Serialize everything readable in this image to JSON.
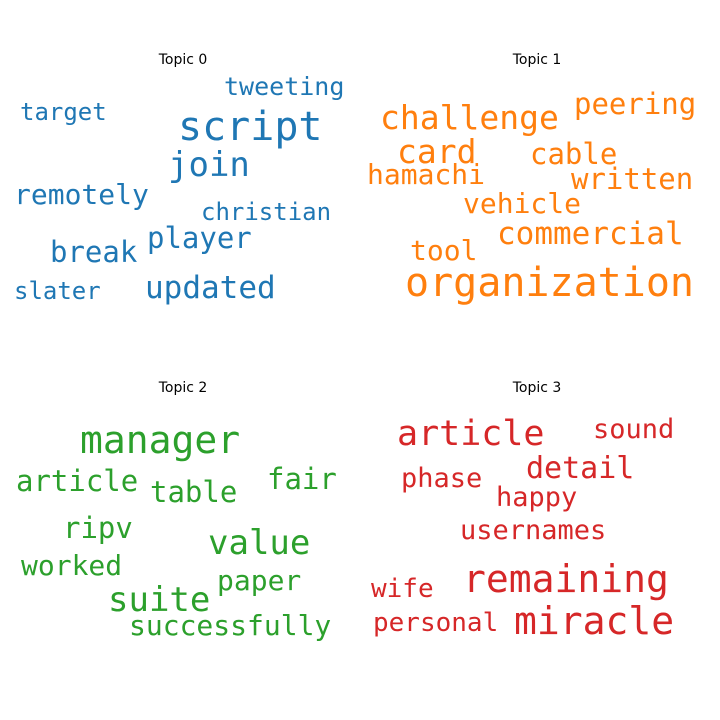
{
  "chart_data": {
    "type": "wordcloud",
    "panels": [
      {
        "title": "Topic 0",
        "color": "#1f77b4",
        "words": [
          "script",
          "join",
          "remotely",
          "break",
          "player",
          "updated",
          "tweeting",
          "target",
          "christian",
          "slater"
        ]
      },
      {
        "title": "Topic 1",
        "color": "#ff7f0e",
        "words": [
          "organization",
          "challenge",
          "card",
          "commercial",
          "peering",
          "cable",
          "written",
          "hamachi",
          "vehicle",
          "tool"
        ]
      },
      {
        "title": "Topic 2",
        "color": "#2ca02c",
        "words": [
          "manager",
          "value",
          "suite",
          "article",
          "table",
          "fair",
          "ripv",
          "worked",
          "paper",
          "successfully"
        ]
      },
      {
        "title": "Topic 3",
        "color": "#d62728",
        "words": [
          "article",
          "remaining",
          "miracle",
          "detail",
          "sound",
          "phase",
          "happy",
          "usernames",
          "wife",
          "personal"
        ]
      }
    ]
  }
}
